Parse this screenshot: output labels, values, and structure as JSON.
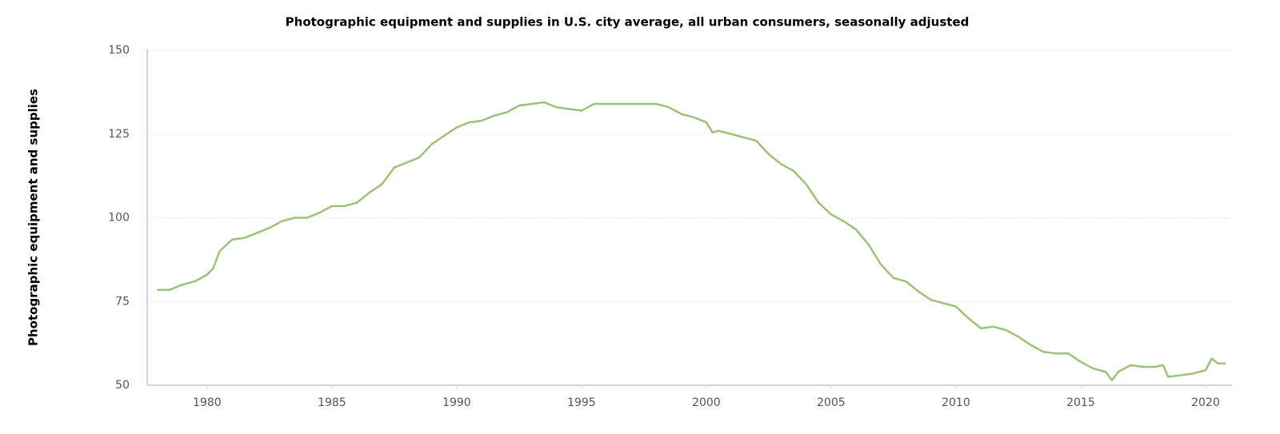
{
  "chart_data": {
    "type": "line",
    "title": "Photographic equipment and supplies in U.S. city average, all urban consumers, seasonally adjusted",
    "y_label": "Photographic equipment and supplies",
    "x": [
      1978.0,
      1978.5,
      1979.0,
      1979.5,
      1980.0,
      1980.25,
      1980.5,
      1981.0,
      1981.5,
      1982.0,
      1982.5,
      1983.0,
      1983.5,
      1984.0,
      1984.5,
      1985.0,
      1985.5,
      1986.0,
      1986.5,
      1987.0,
      1987.5,
      1988.0,
      1988.5,
      1989.0,
      1989.5,
      1990.0,
      1990.5,
      1991.0,
      1991.5,
      1992.0,
      1992.5,
      1993.0,
      1993.5,
      1994.0,
      1994.5,
      1995.0,
      1995.5,
      1996.0,
      1996.5,
      1997.0,
      1997.5,
      1998.0,
      1998.5,
      1999.0,
      1999.5,
      2000.0,
      2000.25,
      2000.5,
      2001.0,
      2001.5,
      2002.0,
      2002.5,
      2003.0,
      2003.5,
      2004.0,
      2004.5,
      2005.0,
      2005.5,
      2006.0,
      2006.5,
      2007.0,
      2007.5,
      2008.0,
      2008.5,
      2009.0,
      2009.5,
      2010.0,
      2010.5,
      2011.0,
      2011.5,
      2012.0,
      2012.5,
      2013.0,
      2013.5,
      2014.0,
      2014.5,
      2015.0,
      2015.5,
      2016.0,
      2016.25,
      2016.5,
      2017.0,
      2017.5,
      2018.0,
      2018.3,
      2018.5,
      2019.0,
      2019.5,
      2020.0,
      2020.25,
      2020.5,
      2020.8
    ],
    "series": [
      {
        "name": "Photographic equipment and supplies",
        "color": "#9dc17a",
        "values": [
          78.5,
          78.5,
          80,
          81,
          83,
          85,
          90,
          93.5,
          94,
          95.5,
          97,
          99,
          100,
          100,
          101.5,
          103.5,
          103.5,
          104.5,
          107.5,
          110,
          115,
          116.5,
          118,
          122,
          124.5,
          127,
          128.5,
          129,
          130.5,
          131.5,
          133.5,
          134,
          134.5,
          133,
          132.5,
          132,
          134,
          134,
          134,
          134,
          134,
          134,
          133,
          131,
          130,
          128.5,
          125.5,
          126,
          125,
          124,
          123,
          119,
          116,
          114,
          110,
          104.5,
          101,
          99,
          96.5,
          92,
          86,
          82,
          81,
          78,
          75.5,
          74.5,
          73.5,
          70,
          67,
          67.5,
          66.5,
          64.5,
          62,
          60,
          59.5,
          59.5,
          57,
          55,
          54,
          51.5,
          54,
          56,
          55.5,
          55.5,
          56,
          52.5,
          53,
          53.5,
          54.5,
          58,
          56.5,
          56.5
        ]
      }
    ],
    "xlim": [
      1977.6,
      2021.06
    ],
    "xticks": [
      1980,
      1985,
      1990,
      1995,
      2000,
      2005,
      2010,
      2015,
      2020
    ],
    "ylim": [
      50,
      150
    ],
    "yticks": [
      50,
      75,
      100,
      125,
      150
    ],
    "grid": true
  }
}
